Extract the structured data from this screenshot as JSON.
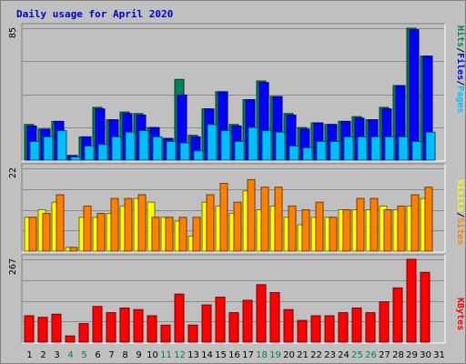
{
  "chart_data": {
    "type": "bar",
    "title": "Daily usage for April 2020",
    "categories": [
      "1",
      "2",
      "3",
      "4",
      "5",
      "6",
      "7",
      "8",
      "9",
      "10",
      "11",
      "12",
      "13",
      "14",
      "15",
      "16",
      "17",
      "18",
      "19",
      "20",
      "21",
      "22",
      "23",
      "24",
      "25",
      "26",
      "27",
      "28",
      "29",
      "30",
      "31"
    ],
    "weekend_days": [
      4,
      5,
      11,
      12,
      18,
      19,
      25,
      26
    ],
    "panels": [
      {
        "name": "hits-files-pages",
        "ymax": 85,
        "ymax_label": "85",
        "axis_labels": [
          "Pages",
          "Files",
          "Hits"
        ],
        "series": [
          {
            "name": "Hits",
            "color": "#00805c",
            "values": [
              23,
              20,
              25,
              3,
              15,
              34,
              26,
              31,
              30,
              21,
              14,
              52,
              16,
              33,
              44,
              23,
              39,
              51,
              41,
              30,
              21,
              24,
              23,
              25,
              28,
              26,
              34,
              48,
              85,
              67,
              0
            ]
          },
          {
            "name": "Files",
            "color": "#0000ff",
            "values": [
              22,
              20,
              25,
              3,
              15,
              33,
              26,
              30,
              29,
              21,
              14,
              42,
              15,
              33,
              44,
              22,
              39,
              50,
              41,
              29,
              20,
              24,
              23,
              25,
              27,
              26,
              33,
              48,
              84,
              67,
              0
            ]
          },
          {
            "name": "Pages",
            "color": "#00bfff",
            "values": [
              12,
              15,
              19,
              2,
              9,
              10,
              15,
              18,
              19,
              15,
              12,
              11,
              6,
              23,
              19,
              12,
              21,
              19,
              18,
              9,
              8,
              12,
              12,
              15,
              15,
              15,
              15,
              15,
              12,
              18,
              0
            ]
          }
        ]
      },
      {
        "name": "visits-sites",
        "ymax": 22,
        "ymax_label": "22",
        "axis_labels": [
          "Sites",
          "Visits"
        ],
        "series": [
          {
            "name": "Visits",
            "color": "#ffff00",
            "values": [
              9,
              11,
              13,
              1,
              9,
              9,
              10,
              12,
              14,
              13,
              9,
              8,
              4,
              13,
              12,
              10,
              16,
              11,
              12,
              9,
              7,
              9,
              9,
              11,
              11,
              11,
              12,
              11,
              12,
              14,
              0
            ]
          },
          {
            "name": "Sites",
            "color": "#ff8000",
            "values": [
              9,
              10,
              15,
              1,
              12,
              10,
              14,
              14,
              15,
              9,
              9,
              9,
              9,
              15,
              18,
              13,
              19,
              17,
              17,
              12,
              11,
              13,
              9,
              11,
              14,
              14,
              11,
              12,
              15,
              17,
              0
            ]
          }
        ]
      },
      {
        "name": "kbytes",
        "ymax": 267,
        "ymax_label": "267",
        "axis_labels": [
          "KBytes"
        ],
        "series": [
          {
            "name": "KBytes",
            "color": "#ff0000",
            "values": [
              85,
              80,
              90,
              20,
              60,
              115,
              95,
              110,
              105,
              85,
              55,
              155,
              55,
              120,
              145,
              95,
              135,
              185,
              160,
              105,
              70,
              85,
              85,
              95,
              110,
              95,
              130,
              175,
              267,
              225,
              0
            ]
          }
        ]
      }
    ]
  }
}
